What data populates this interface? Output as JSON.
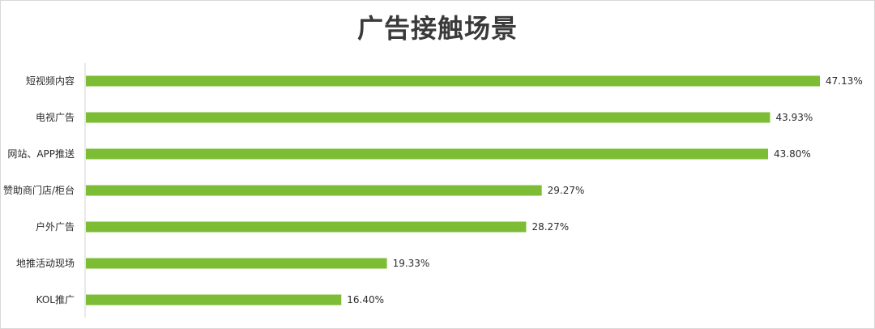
{
  "chart_data": {
    "type": "bar",
    "orientation": "horizontal",
    "title": "广告接触场景",
    "categories": [
      "短视频内容",
      "电视广告",
      "网站、APP推送",
      "赞助商门店/柜台",
      "户外广告",
      "地推活动现场",
      "KOL推广"
    ],
    "values": [
      47.13,
      43.93,
      43.8,
      29.27,
      28.27,
      19.33,
      16.4
    ],
    "value_labels": [
      "47.13%",
      "43.93%",
      "43.80%",
      "29.27%",
      "28.27%",
      "19.33%",
      "16.40%"
    ],
    "unit": "%",
    "xlim": [
      0,
      47.13
    ],
    "grid": false,
    "legend": "none",
    "bar_color": "#7dbd35"
  }
}
